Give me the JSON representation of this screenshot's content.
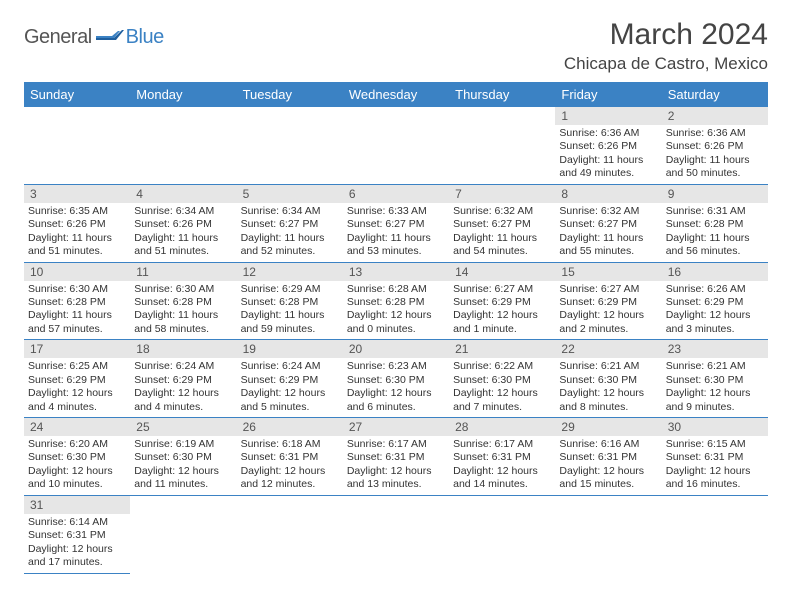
{
  "logo": {
    "general": "General",
    "blue": "Blue"
  },
  "title": "March 2024",
  "location": "Chicapa de Castro, Mexico",
  "colors": {
    "header_bg": "#3b82c4",
    "header_text": "#ffffff",
    "daynum_bg": "#e6e6e6",
    "body_text": "#333333",
    "rule": "#3b82c4"
  },
  "weekdays": [
    "Sunday",
    "Monday",
    "Tuesday",
    "Wednesday",
    "Thursday",
    "Friday",
    "Saturday"
  ],
  "weeks": [
    [
      null,
      null,
      null,
      null,
      null,
      {
        "n": "1",
        "sr": "6:36 AM",
        "ss": "6:26 PM",
        "dl": "11 hours and 49 minutes."
      },
      {
        "n": "2",
        "sr": "6:36 AM",
        "ss": "6:26 PM",
        "dl": "11 hours and 50 minutes."
      }
    ],
    [
      {
        "n": "3",
        "sr": "6:35 AM",
        "ss": "6:26 PM",
        "dl": "11 hours and 51 minutes."
      },
      {
        "n": "4",
        "sr": "6:34 AM",
        "ss": "6:26 PM",
        "dl": "11 hours and 51 minutes."
      },
      {
        "n": "5",
        "sr": "6:34 AM",
        "ss": "6:27 PM",
        "dl": "11 hours and 52 minutes."
      },
      {
        "n": "6",
        "sr": "6:33 AM",
        "ss": "6:27 PM",
        "dl": "11 hours and 53 minutes."
      },
      {
        "n": "7",
        "sr": "6:32 AM",
        "ss": "6:27 PM",
        "dl": "11 hours and 54 minutes."
      },
      {
        "n": "8",
        "sr": "6:32 AM",
        "ss": "6:27 PM",
        "dl": "11 hours and 55 minutes."
      },
      {
        "n": "9",
        "sr": "6:31 AM",
        "ss": "6:28 PM",
        "dl": "11 hours and 56 minutes."
      }
    ],
    [
      {
        "n": "10",
        "sr": "6:30 AM",
        "ss": "6:28 PM",
        "dl": "11 hours and 57 minutes."
      },
      {
        "n": "11",
        "sr": "6:30 AM",
        "ss": "6:28 PM",
        "dl": "11 hours and 58 minutes."
      },
      {
        "n": "12",
        "sr": "6:29 AM",
        "ss": "6:28 PM",
        "dl": "11 hours and 59 minutes."
      },
      {
        "n": "13",
        "sr": "6:28 AM",
        "ss": "6:28 PM",
        "dl": "12 hours and 0 minutes."
      },
      {
        "n": "14",
        "sr": "6:27 AM",
        "ss": "6:29 PM",
        "dl": "12 hours and 1 minute."
      },
      {
        "n": "15",
        "sr": "6:27 AM",
        "ss": "6:29 PM",
        "dl": "12 hours and 2 minutes."
      },
      {
        "n": "16",
        "sr": "6:26 AM",
        "ss": "6:29 PM",
        "dl": "12 hours and 3 minutes."
      }
    ],
    [
      {
        "n": "17",
        "sr": "6:25 AM",
        "ss": "6:29 PM",
        "dl": "12 hours and 4 minutes."
      },
      {
        "n": "18",
        "sr": "6:24 AM",
        "ss": "6:29 PM",
        "dl": "12 hours and 4 minutes."
      },
      {
        "n": "19",
        "sr": "6:24 AM",
        "ss": "6:29 PM",
        "dl": "12 hours and 5 minutes."
      },
      {
        "n": "20",
        "sr": "6:23 AM",
        "ss": "6:30 PM",
        "dl": "12 hours and 6 minutes."
      },
      {
        "n": "21",
        "sr": "6:22 AM",
        "ss": "6:30 PM",
        "dl": "12 hours and 7 minutes."
      },
      {
        "n": "22",
        "sr": "6:21 AM",
        "ss": "6:30 PM",
        "dl": "12 hours and 8 minutes."
      },
      {
        "n": "23",
        "sr": "6:21 AM",
        "ss": "6:30 PM",
        "dl": "12 hours and 9 minutes."
      }
    ],
    [
      {
        "n": "24",
        "sr": "6:20 AM",
        "ss": "6:30 PM",
        "dl": "12 hours and 10 minutes."
      },
      {
        "n": "25",
        "sr": "6:19 AM",
        "ss": "6:30 PM",
        "dl": "12 hours and 11 minutes."
      },
      {
        "n": "26",
        "sr": "6:18 AM",
        "ss": "6:31 PM",
        "dl": "12 hours and 12 minutes."
      },
      {
        "n": "27",
        "sr": "6:17 AM",
        "ss": "6:31 PM",
        "dl": "12 hours and 13 minutes."
      },
      {
        "n": "28",
        "sr": "6:17 AM",
        "ss": "6:31 PM",
        "dl": "12 hours and 14 minutes."
      },
      {
        "n": "29",
        "sr": "6:16 AM",
        "ss": "6:31 PM",
        "dl": "12 hours and 15 minutes."
      },
      {
        "n": "30",
        "sr": "6:15 AM",
        "ss": "6:31 PM",
        "dl": "12 hours and 16 minutes."
      }
    ],
    [
      {
        "n": "31",
        "sr": "6:14 AM",
        "ss": "6:31 PM",
        "dl": "12 hours and 17 minutes."
      },
      null,
      null,
      null,
      null,
      null,
      null
    ]
  ],
  "labels": {
    "sunrise": "Sunrise:",
    "sunset": "Sunset:",
    "daylight": "Daylight:"
  }
}
